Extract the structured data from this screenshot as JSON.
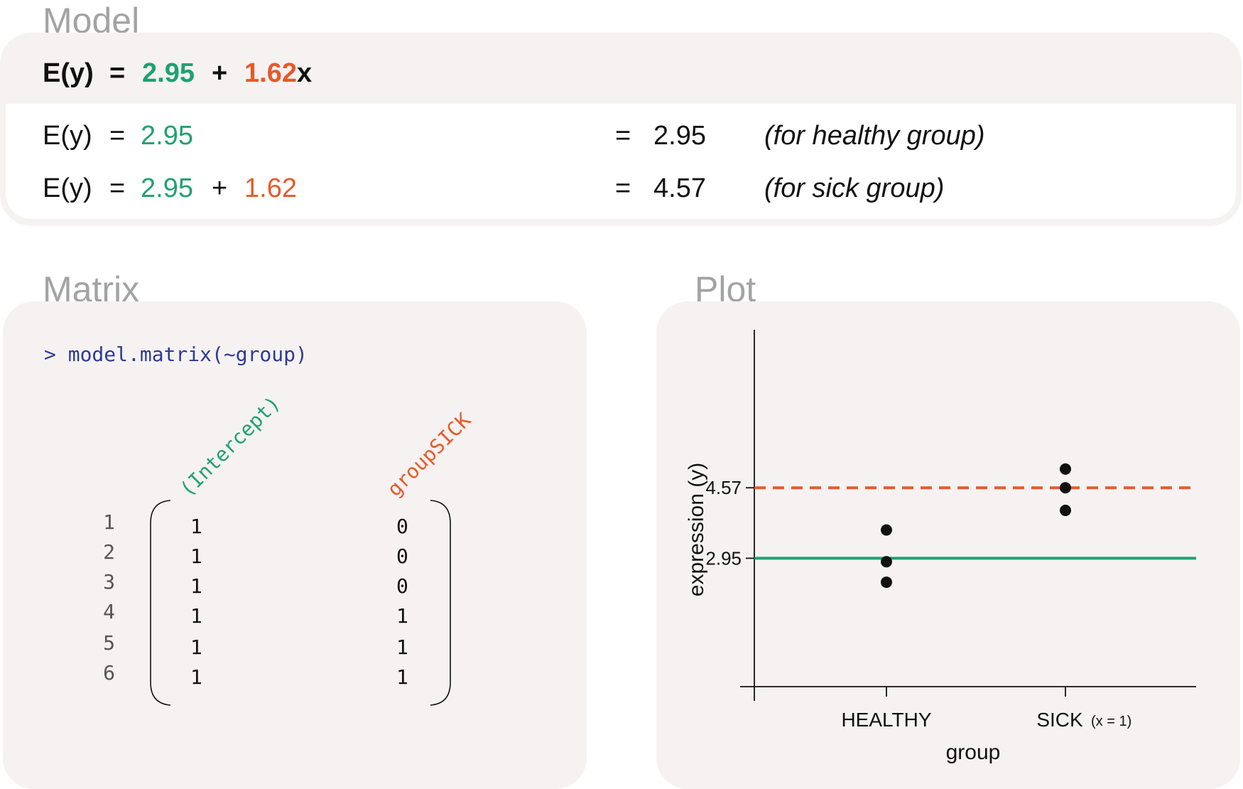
{
  "sections": {
    "model": "Model",
    "matrix": "Matrix",
    "plot": "Plot"
  },
  "model": {
    "main": {
      "lhs": "E(y)",
      "eq": "=",
      "intercept": "2.95",
      "plus": "+",
      "coef": "1.62",
      "var": "x"
    },
    "healthy": {
      "lhs": "E(y)",
      "eq": "=",
      "intercept": "2.95",
      "eq2": "=",
      "result": "2.95",
      "note": "(for healthy group)"
    },
    "sick": {
      "lhs": "E(y)",
      "eq": "=",
      "intercept": "2.95",
      "plus": "+",
      "coef": "1.62",
      "eq2": "=",
      "result": "4.57",
      "note": "(for sick group)"
    }
  },
  "matrix": {
    "code": "> model.matrix(~group)",
    "columns": [
      "(Intercept)",
      "groupSICK"
    ],
    "row_labels": [
      "1",
      "2",
      "3",
      "4",
      "5",
      "6"
    ],
    "intercept_values": [
      "1",
      "1",
      "1",
      "1",
      "1",
      "1"
    ],
    "group_values": [
      "0",
      "0",
      "0",
      "1",
      "1",
      "1"
    ]
  },
  "colors": {
    "green": "#1fa172",
    "orange": "#e65a2a",
    "code_blue": "#2c3a97"
  },
  "chart_data": {
    "type": "scatter",
    "categories": [
      "HEALTHY",
      "SICK"
    ],
    "category_note": "(x = 1)",
    "xlabel": "group",
    "ylabel": "expression (y)",
    "ylim": [
      0,
      8.2
    ],
    "y_ticks": [
      2.95,
      4.57
    ],
    "y_tick_labels": [
      "2.95",
      "4.57"
    ],
    "points": [
      {
        "group": "HEALTHY",
        "y": 3.6
      },
      {
        "group": "HEALTHY",
        "y": 2.87
      },
      {
        "group": "HEALTHY",
        "y": 2.4
      },
      {
        "group": "SICK",
        "y": 5.0
      },
      {
        "group": "SICK",
        "y": 4.57
      },
      {
        "group": "SICK",
        "y": 4.05
      }
    ],
    "lines": [
      {
        "y": 2.95,
        "style": "solid",
        "color": "#1fa172"
      },
      {
        "y": 4.57,
        "style": "dashed",
        "color": "#e65a2a"
      }
    ]
  }
}
